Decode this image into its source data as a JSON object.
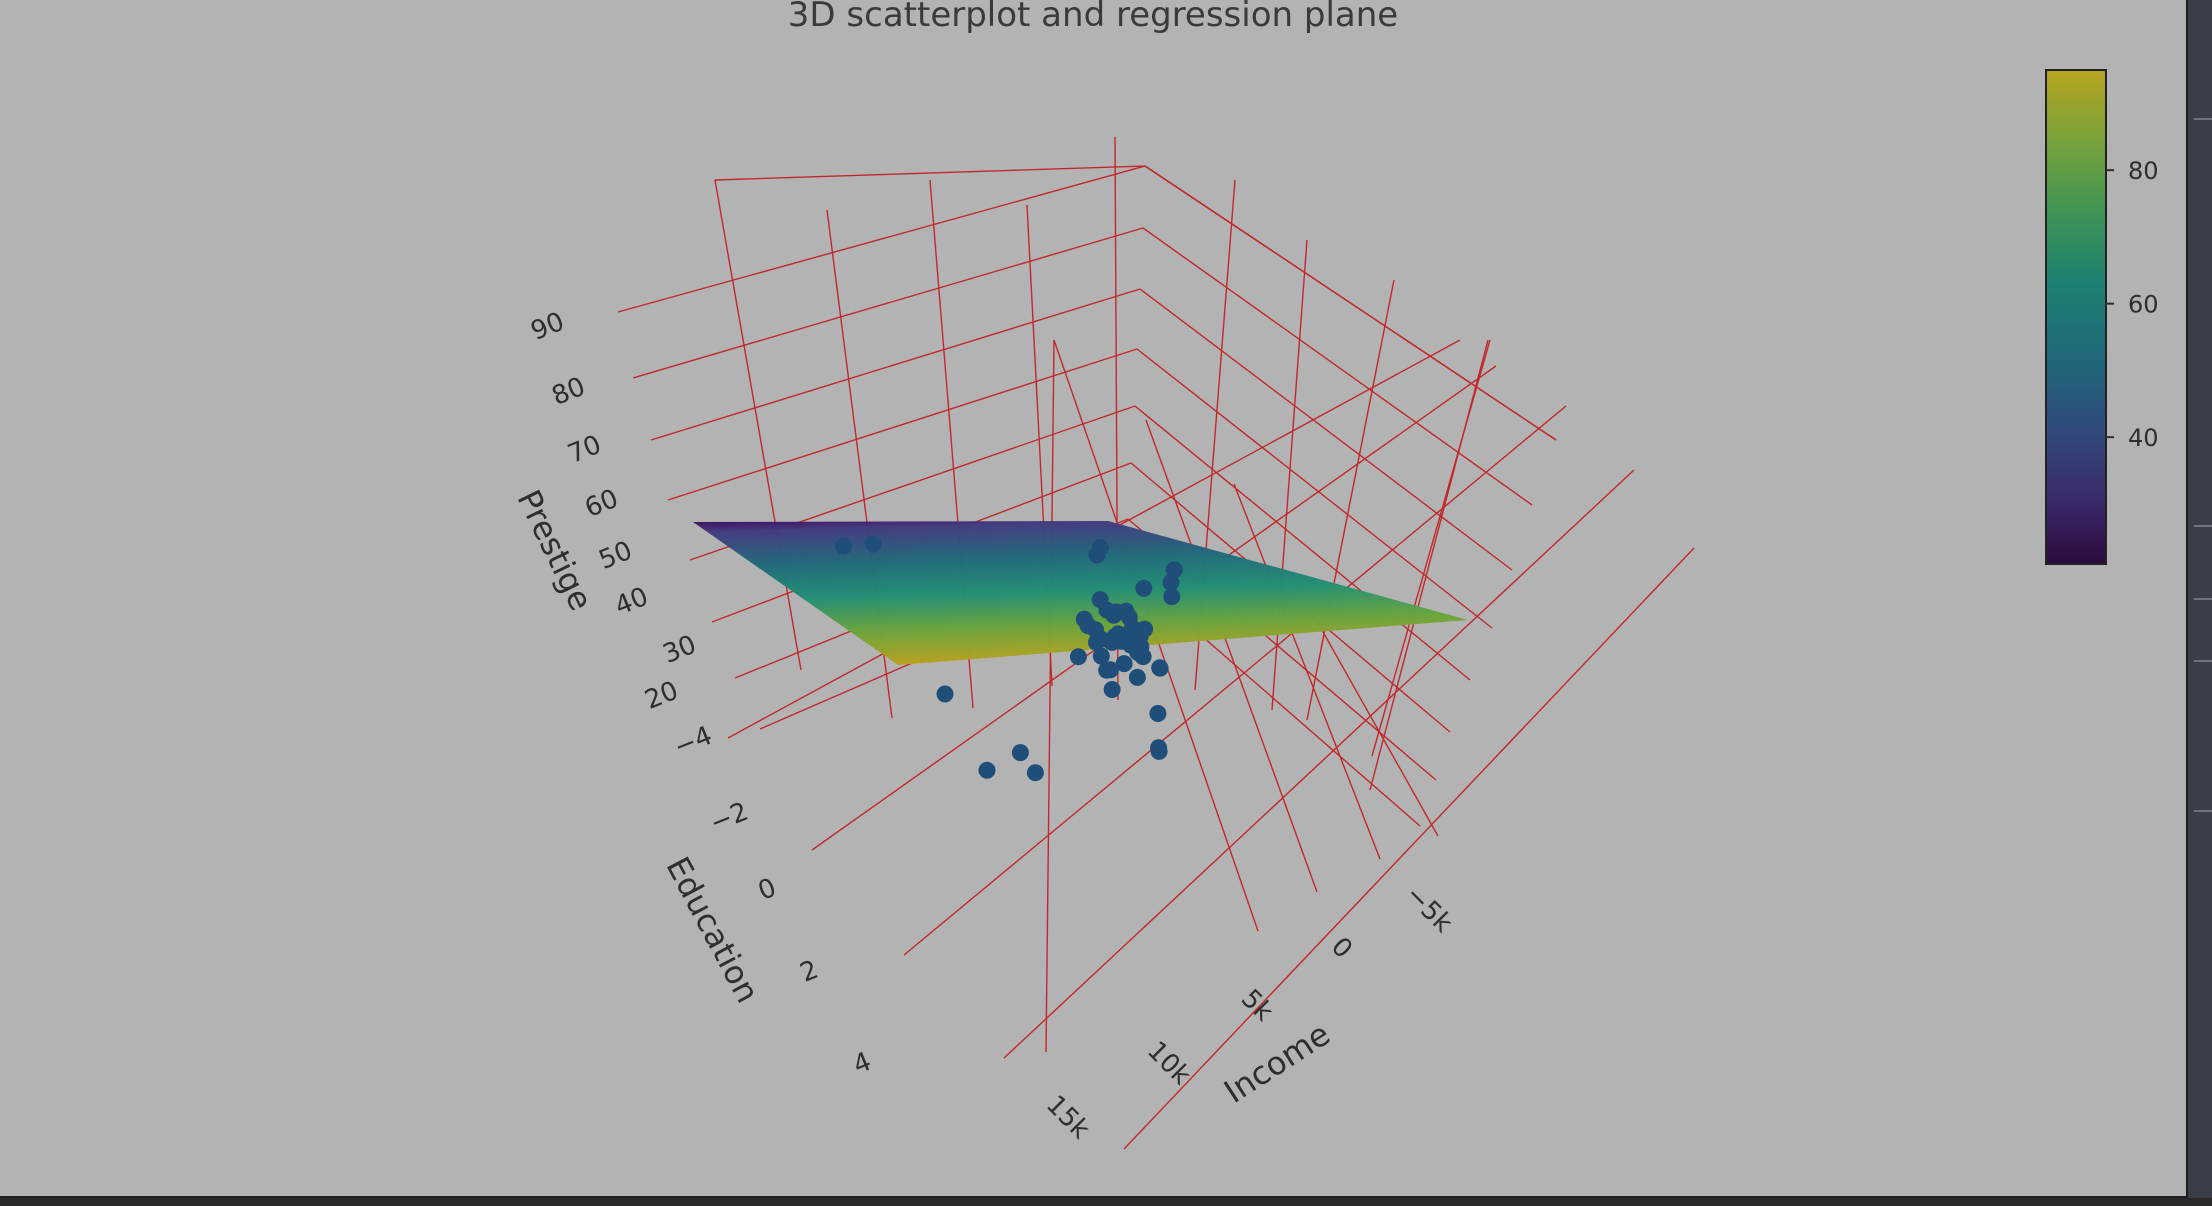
{
  "chart_data": {
    "type": "scatter",
    "title": "3D scatterplot and regression plane",
    "axes": {
      "x": {
        "label": "Income",
        "ticks": [
          {
            "value": -5000,
            "label": "−5k"
          },
          {
            "value": 0,
            "label": "0"
          },
          {
            "value": 5000,
            "label": "5k"
          },
          {
            "value": 10000,
            "label": "10k"
          },
          {
            "value": 15000,
            "label": "15k"
          }
        ]
      },
      "y": {
        "label": "Education",
        "ticks": [
          {
            "value": -4,
            "label": "−4"
          },
          {
            "value": -2,
            "label": "−2"
          },
          {
            "value": 0,
            "label": "0"
          },
          {
            "value": 2,
            "label": "2"
          },
          {
            "value": 4,
            "label": "4"
          }
        ]
      },
      "z": {
        "label": "Prestige",
        "ticks": [
          {
            "value": 20,
            "label": "20"
          },
          {
            "value": 30,
            "label": "30"
          },
          {
            "value": 40,
            "label": "40"
          },
          {
            "value": 50,
            "label": "50"
          },
          {
            "value": 60,
            "label": "60"
          },
          {
            "value": 70,
            "label": "70"
          },
          {
            "value": 80,
            "label": "80"
          },
          {
            "value": 90,
            "label": "90"
          }
        ]
      }
    },
    "grid": "on",
    "grid_color": "#c0282d",
    "marker_color": "#1f4e79",
    "colorbar": {
      "colorscale": "viridis",
      "ticks": [
        {
          "value": 40,
          "label": "40"
        },
        {
          "value": 60,
          "label": "60"
        },
        {
          "value": 80,
          "label": "80"
        }
      ],
      "range": [
        21,
        95
      ]
    },
    "points": [
      {
        "income": 1000,
        "education": 0.8,
        "prestige": 62
      },
      {
        "income": 1200,
        "education": 0.6,
        "prestige": 60
      },
      {
        "income": 1500,
        "education": 0.9,
        "prestige": 61
      },
      {
        "income": 800,
        "education": 0.7,
        "prestige": 59
      },
      {
        "income": 2500,
        "education": 1.0,
        "prestige": 70
      },
      {
        "income": 3500,
        "education": 0.4,
        "prestige": 68
      },
      {
        "income": 1100,
        "education": 0.3,
        "prestige": 56
      },
      {
        "income": 1300,
        "education": 0.5,
        "prestige": 57
      },
      {
        "income": 1600,
        "education": 0.2,
        "prestige": 55
      },
      {
        "income": 1900,
        "education": 0.1,
        "prestige": 54
      },
      {
        "income": 1400,
        "education": 0.0,
        "prestige": 56
      },
      {
        "income": 2100,
        "education": -0.1,
        "prestige": 53
      },
      {
        "income": 2400,
        "education": 0.2,
        "prestige": 52
      },
      {
        "income": 2700,
        "education": -0.3,
        "prestige": 51
      },
      {
        "income": 3100,
        "education": 0.0,
        "prestige": 50
      },
      {
        "income": 3300,
        "education": -0.4,
        "prestige": 48
      },
      {
        "income": 1700,
        "education": 0.6,
        "prestige": 50
      },
      {
        "income": 2900,
        "education": 0.5,
        "prestige": 46
      },
      {
        "income": 3600,
        "education": 0.3,
        "prestige": 44
      },
      {
        "income": 2000,
        "education": 0.9,
        "prestige": 45
      },
      {
        "income": 4200,
        "education": -0.2,
        "prestige": 47
      },
      {
        "income": 4800,
        "education": -0.6,
        "prestige": 46
      },
      {
        "income": 5200,
        "education": -0.9,
        "prestige": 45
      },
      {
        "income": 5600,
        "education": -0.5,
        "prestige": 44
      },
      {
        "income": 6100,
        "education": -1.2,
        "prestige": 46
      },
      {
        "income": 6600,
        "education": -0.8,
        "prestige": 43
      },
      {
        "income": 7200,
        "education": -1.5,
        "prestige": 44
      },
      {
        "income": 7800,
        "education": -1.0,
        "prestige": 42
      },
      {
        "income": 8300,
        "education": -1.8,
        "prestige": 43
      },
      {
        "income": 4000,
        "education": -2.2,
        "prestige": 52
      },
      {
        "income": 4600,
        "education": -2.6,
        "prestige": 55
      },
      {
        "income": 5500,
        "education": -2.9,
        "prestige": 50
      },
      {
        "income": 6400,
        "education": -2.4,
        "prestige": 48
      },
      {
        "income": 3800,
        "education": -1.6,
        "prestige": 40
      },
      {
        "income": 4400,
        "education": -1.9,
        "prestige": 38
      },
      {
        "income": 5000,
        "education": -1.4,
        "prestige": 36
      },
      {
        "income": 5800,
        "education": -2.0,
        "prestige": 37
      },
      {
        "income": 6800,
        "education": -2.3,
        "prestige": 35
      },
      {
        "income": 7400,
        "education": -2.7,
        "prestige": 34
      },
      {
        "income": 3000,
        "education": -1.1,
        "prestige": 34
      },
      {
        "income": 2200,
        "education": -0.7,
        "prestige": 30
      },
      {
        "income": 2600,
        "education": -0.9,
        "prestige": 28
      },
      {
        "income": 9000,
        "education": -2.1,
        "prestige": 30
      },
      {
        "income": 9800,
        "education": -1.7,
        "prestige": 29
      },
      {
        "income": 10500,
        "education": -2.4,
        "prestige": 32
      },
      {
        "income": 11200,
        "education": -3.0,
        "prestige": 26
      },
      {
        "income": 12500,
        "education": 1.6,
        "prestige": 23
      },
      {
        "income": 6000,
        "education": 2.2,
        "prestige": 27
      },
      {
        "income": 5400,
        "education": 2.0,
        "prestige": 24
      },
      {
        "income": 7600,
        "education": 2.6,
        "prestige": 21
      },
      {
        "income": 13000,
        "education": 3.6,
        "prestige": 55
      },
      {
        "income": 14500,
        "education": 3.9,
        "prestige": 52
      }
    ]
  }
}
